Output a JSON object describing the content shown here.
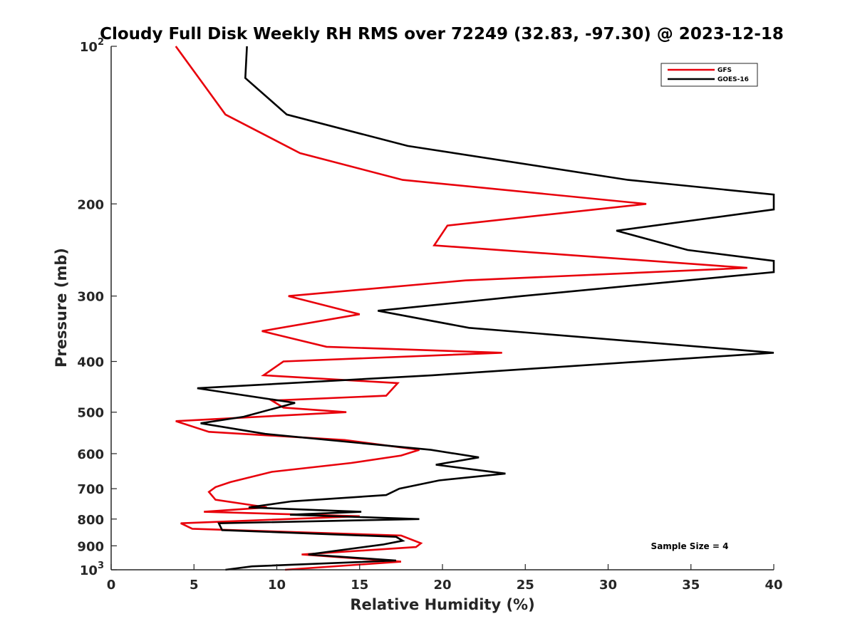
{
  "chart_data": {
    "type": "line",
    "title": "Cloudy Full Disk Weekly RH RMS over 72249 (32.83, -97.30) @ 2023-12-18",
    "xlabel": "Relative Humidity (%)",
    "ylabel": "Pressure (mb)",
    "xlim": [
      0,
      40
    ],
    "ylim": [
      100,
      1000
    ],
    "yscale": "log",
    "yreversed": true,
    "x_ticks": [
      "0",
      "5",
      "10",
      "15",
      "20",
      "25",
      "30",
      "35",
      "40"
    ],
    "y_ticks": [
      {
        "value": 100,
        "base": "10",
        "exp": "2"
      },
      {
        "value": 200,
        "label": "200"
      },
      {
        "value": 300,
        "label": "300"
      },
      {
        "value": 400,
        "label": "400"
      },
      {
        "value": 500,
        "label": "500"
      },
      {
        "value": 600,
        "label": "600"
      },
      {
        "value": 700,
        "label": "700"
      },
      {
        "value": 800,
        "label": "800"
      },
      {
        "value": 900,
        "label": "900"
      },
      {
        "value": 1000,
        "base": "10",
        "exp": "3"
      }
    ],
    "legend_position": "top-right",
    "annotation": "Sample Size = 4",
    "series": [
      {
        "name": "GFS",
        "color": "#e8000b",
        "points": [
          [
            3.9,
            100
          ],
          [
            5.3,
            115
          ],
          [
            6.9,
            135
          ],
          [
            11.4,
            160
          ],
          [
            17.6,
            180
          ],
          [
            32.3,
            200
          ],
          [
            20.3,
            220
          ],
          [
            19.5,
            240
          ],
          [
            38.4,
            265
          ],
          [
            21.4,
            280
          ],
          [
            10.7,
            300
          ],
          [
            15.0,
            325
          ],
          [
            9.1,
            350
          ],
          [
            13.0,
            375
          ],
          [
            23.6,
            385
          ],
          [
            10.4,
            400
          ],
          [
            9.2,
            425
          ],
          [
            17.3,
            440
          ],
          [
            16.6,
            465
          ],
          [
            9.7,
            475
          ],
          [
            10.4,
            490
          ],
          [
            14.2,
            500
          ],
          [
            3.9,
            520
          ],
          [
            5.9,
            545
          ],
          [
            14.1,
            565
          ],
          [
            18.6,
            590
          ],
          [
            17.5,
            605
          ],
          [
            14.5,
            625
          ],
          [
            9.7,
            650
          ],
          [
            7.2,
            680
          ],
          [
            6.3,
            695
          ],
          [
            5.9,
            710
          ],
          [
            6.3,
            735
          ],
          [
            9.4,
            760
          ],
          [
            5.6,
            775
          ],
          [
            15.0,
            790
          ],
          [
            4.2,
            815
          ],
          [
            4.9,
            835
          ],
          [
            17.5,
            860
          ],
          [
            18.7,
            890
          ],
          [
            18.4,
            905
          ],
          [
            11.5,
            935
          ],
          [
            17.5,
            965
          ],
          [
            10.5,
            1000
          ]
        ]
      },
      {
        "name": "GOES-16",
        "color": "#000000",
        "points": [
          [
            8.2,
            100
          ],
          [
            8.1,
            115
          ],
          [
            10.6,
            135
          ],
          [
            17.9,
            155
          ],
          [
            31.2,
            180
          ],
          [
            40.0,
            192
          ],
          [
            40.0,
            205
          ],
          [
            30.5,
            225
          ],
          [
            34.8,
            245
          ],
          [
            40.0,
            257
          ],
          [
            40.0,
            270
          ],
          [
            32.2,
            285
          ],
          [
            24.8,
            300
          ],
          [
            16.1,
            320
          ],
          [
            21.6,
            345
          ],
          [
            40.0,
            385
          ],
          [
            19.4,
            425
          ],
          [
            5.2,
            450
          ],
          [
            11.1,
            480
          ],
          [
            8.0,
            510
          ],
          [
            5.4,
            525
          ],
          [
            9.3,
            550
          ],
          [
            19.3,
            590
          ],
          [
            22.2,
            610
          ],
          [
            19.6,
            630
          ],
          [
            23.8,
            655
          ],
          [
            19.8,
            675
          ],
          [
            17.4,
            700
          ],
          [
            16.6,
            720
          ],
          [
            10.9,
            740
          ],
          [
            8.3,
            760
          ],
          [
            15.1,
            775
          ],
          [
            10.8,
            785
          ],
          [
            18.6,
            800
          ],
          [
            6.5,
            815
          ],
          [
            6.7,
            840
          ],
          [
            17.2,
            865
          ],
          [
            17.6,
            880
          ],
          [
            16.4,
            895
          ],
          [
            11.9,
            935
          ],
          [
            17.2,
            960
          ],
          [
            8.5,
            985
          ],
          [
            6.9,
            1000
          ]
        ]
      }
    ]
  }
}
